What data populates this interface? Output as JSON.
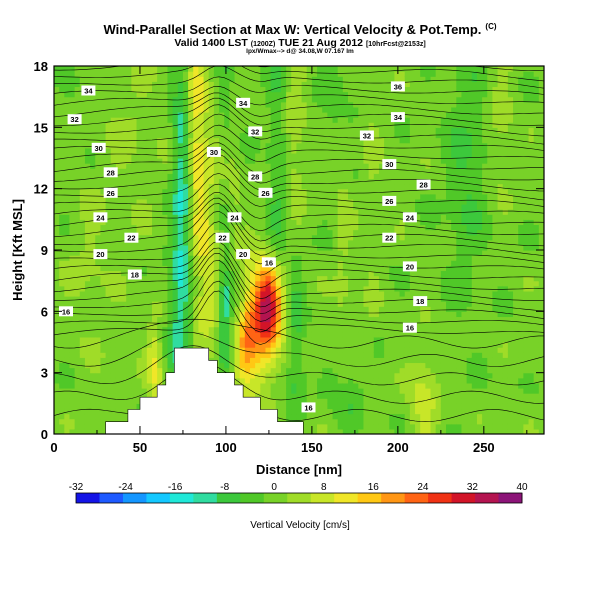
{
  "header": {
    "title": "Wind-Parallel Section at Max W: Vertical Velocity & Pot.Temp.",
    "copyright": "(C)",
    "subtitle_main": "Valid 1400 LST ",
    "subtitle_small1": "(1200Z)",
    "subtitle_mid": " TUE 21 Aug 2012 ",
    "subtitle_small2": "[10hrFcst@2153z]",
    "info": "lpx/Wmax--> d@ 34.08,W 07.167 lm"
  },
  "chart_data": {
    "type": "heatmap",
    "xlabel": "Distance [nm]",
    "ylabel": "Height [Kft MSL]",
    "xlim": [
      0,
      285
    ],
    "ylim": [
      0,
      18
    ],
    "xticks": [
      0,
      50,
      100,
      150,
      200,
      250
    ],
    "yticks": [
      0,
      3,
      6,
      9,
      12,
      15,
      18
    ],
    "colorbar": {
      "label": "Vertical Velocity [cm/s]",
      "ticks": [
        -32,
        -24,
        -16,
        -8,
        0,
        8,
        16,
        24,
        32,
        40
      ],
      "levels": [
        -32,
        -28,
        -24,
        -20,
        -16,
        -12,
        -8,
        -4,
        0,
        4,
        8,
        12,
        16,
        20,
        24,
        28,
        32,
        36,
        40
      ],
      "colors": [
        "#1414e6",
        "#1e5aff",
        "#1496ff",
        "#14c8ff",
        "#20e8d8",
        "#30dca0",
        "#3cc83c",
        "#50c828",
        "#78d228",
        "#a0dc28",
        "#c8e628",
        "#f0e628",
        "#ffc814",
        "#ff9614",
        "#ff6414",
        "#f03214",
        "#d21428",
        "#b41450",
        "#8c1478"
      ]
    },
    "isentrope_labels": [
      {
        "x": 20,
        "y": 16.8,
        "text": "34"
      },
      {
        "x": 12,
        "y": 15.4,
        "text": "32"
      },
      {
        "x": 26,
        "y": 14.0,
        "text": "30"
      },
      {
        "x": 33,
        "y": 12.8,
        "text": "28"
      },
      {
        "x": 33,
        "y": 11.8,
        "text": "26"
      },
      {
        "x": 27,
        "y": 10.6,
        "text": "24"
      },
      {
        "x": 45,
        "y": 9.6,
        "text": "22"
      },
      {
        "x": 27,
        "y": 8.8,
        "text": "20"
      },
      {
        "x": 47,
        "y": 7.8,
        "text": "18"
      },
      {
        "x": 7,
        "y": 6.0,
        "text": "16"
      },
      {
        "x": 110,
        "y": 16.2,
        "text": "34"
      },
      {
        "x": 117,
        "y": 14.8,
        "text": "32"
      },
      {
        "x": 93,
        "y": 13.8,
        "text": "30"
      },
      {
        "x": 117,
        "y": 12.6,
        "text": "28"
      },
      {
        "x": 123,
        "y": 11.8,
        "text": "26"
      },
      {
        "x": 105,
        "y": 10.6,
        "text": "24"
      },
      {
        "x": 98,
        "y": 9.6,
        "text": "22"
      },
      {
        "x": 110,
        "y": 8.8,
        "text": "20"
      },
      {
        "x": 125,
        "y": 8.4,
        "text": "16"
      },
      {
        "x": 200,
        "y": 17.0,
        "text": "36"
      },
      {
        "x": 200,
        "y": 15.5,
        "text": "34"
      },
      {
        "x": 182,
        "y": 14.6,
        "text": "32"
      },
      {
        "x": 195,
        "y": 13.2,
        "text": "30"
      },
      {
        "x": 215,
        "y": 12.2,
        "text": "28"
      },
      {
        "x": 195,
        "y": 11.4,
        "text": "26"
      },
      {
        "x": 207,
        "y": 10.6,
        "text": "24"
      },
      {
        "x": 195,
        "y": 9.6,
        "text": "22"
      },
      {
        "x": 207,
        "y": 8.2,
        "text": "20"
      },
      {
        "x": 213,
        "y": 6.5,
        "text": "18"
      },
      {
        "x": 207,
        "y": 5.2,
        "text": "16"
      },
      {
        "x": 148,
        "y": 1.3,
        "text": "16"
      }
    ],
    "w_features": [
      {
        "x": 82,
        "y": 15,
        "sx": 4,
        "sy": 4,
        "v": 12
      },
      {
        "x": 88,
        "y": 9,
        "sx": 5,
        "sy": 5,
        "v": 9
      },
      {
        "x": 75,
        "y": 12,
        "sx": 4,
        "sy": 5,
        "v": -14
      },
      {
        "x": 72,
        "y": 5,
        "sx": 4,
        "sy": 3,
        "v": -8
      },
      {
        "x": 100,
        "y": 6,
        "sx": 3,
        "sy": 2,
        "v": -16
      },
      {
        "x": 107,
        "y": 6,
        "sx": 3,
        "sy": 2,
        "v": -8
      },
      {
        "x": 120,
        "y": 5.5,
        "sx": 11,
        "sy": 2.2,
        "v": 20
      },
      {
        "x": 125,
        "y": 6.3,
        "sx": 5,
        "sy": 1.2,
        "v": 22
      },
      {
        "x": 110,
        "y": 4.2,
        "sx": 4,
        "sy": 1.5,
        "v": 10
      },
      {
        "x": 140,
        "y": 5,
        "sx": 4,
        "sy": 3,
        "v": -10
      },
      {
        "x": 130,
        "y": 12,
        "sx": 4,
        "sy": 6,
        "v": -6
      },
      {
        "x": 140,
        "y": 15,
        "sx": 4,
        "sy": 4,
        "v": 6
      },
      {
        "x": 168,
        "y": 9,
        "sx": 3,
        "sy": 5,
        "v": 4
      },
      {
        "x": 185,
        "y": 12,
        "sx": 3,
        "sy": 5,
        "v": 3
      },
      {
        "x": 240,
        "y": 13,
        "sx": 8,
        "sy": 4,
        "v": -6
      },
      {
        "x": 260,
        "y": 16,
        "sx": 5,
        "sy": 3,
        "v": 4
      },
      {
        "x": 58,
        "y": 4,
        "sx": 3,
        "sy": 1.5,
        "v": 8
      },
      {
        "x": 60,
        "y": 1.5,
        "sx": 3,
        "sy": 1.5,
        "v": 6
      },
      {
        "x": 105,
        "y": 11,
        "sx": 3,
        "sy": 4,
        "v": 3
      },
      {
        "x": 100,
        "y": 17,
        "sx": 3,
        "sy": 2,
        "v": -4
      },
      {
        "x": 215,
        "y": 1.5,
        "sx": 6,
        "sy": 2,
        "v": 8
      },
      {
        "x": 170,
        "y": 2,
        "sx": 6,
        "sy": 1.5,
        "v": -5
      },
      {
        "x": 165,
        "y": 17,
        "sx": 6,
        "sy": 2,
        "v": -4
      },
      {
        "x": 45,
        "y": 15,
        "sx": 12,
        "sy": 3,
        "v": 3
      },
      {
        "x": 20,
        "y": 8,
        "sx": 10,
        "sy": 3,
        "v": 3
      }
    ],
    "terrain": [
      [
        0,
        0.0
      ],
      [
        30,
        0.0
      ],
      [
        30,
        0.6
      ],
      [
        33,
        0.6
      ],
      [
        33,
        0.6
      ],
      [
        43,
        0.6
      ],
      [
        43,
        1.2
      ],
      [
        50,
        1.2
      ],
      [
        50,
        1.8
      ],
      [
        60,
        1.8
      ],
      [
        60,
        2.4
      ],
      [
        65,
        2.4
      ],
      [
        65,
        3.0
      ],
      [
        70,
        3.0
      ],
      [
        70,
        4.2
      ],
      [
        90,
        4.2
      ],
      [
        90,
        3.6
      ],
      [
        95,
        3.6
      ],
      [
        95,
        3.0
      ],
      [
        105,
        3.0
      ],
      [
        105,
        2.4
      ],
      [
        110,
        2.4
      ],
      [
        110,
        1.8
      ],
      [
        120,
        1.8
      ],
      [
        120,
        1.2
      ],
      [
        130,
        1.2
      ],
      [
        130,
        0.6
      ],
      [
        145,
        0.6
      ],
      [
        145,
        0.0
      ],
      [
        285,
        0.0
      ]
    ]
  }
}
